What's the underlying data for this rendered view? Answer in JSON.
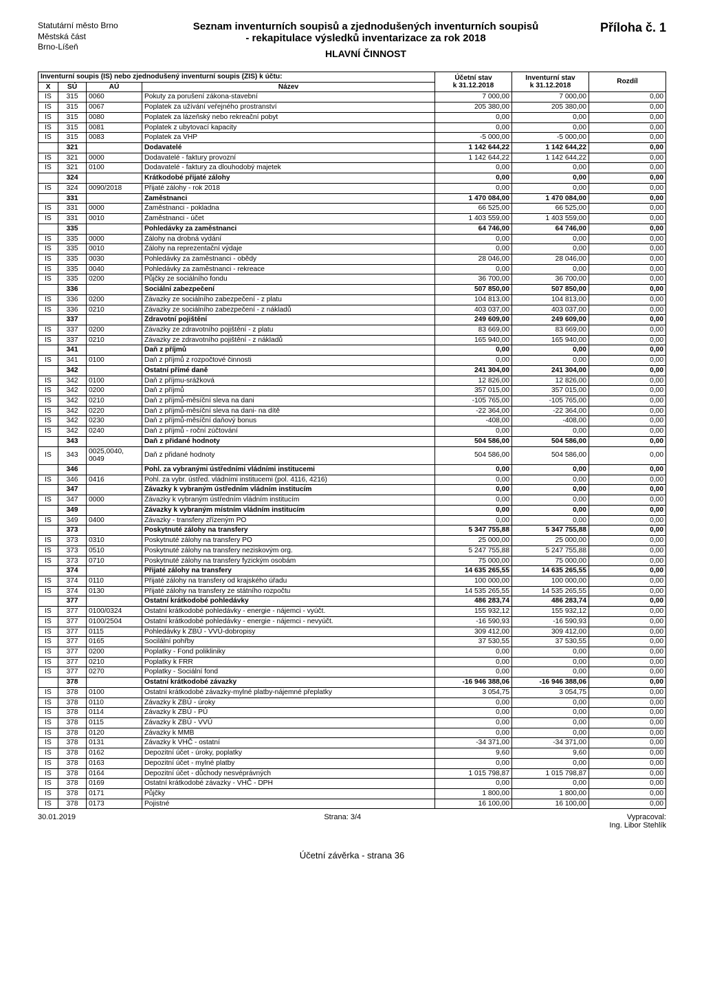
{
  "org": {
    "line1": "Statutární město Brno",
    "line2": "Městská část",
    "line3": "Brno-Líšeň"
  },
  "title": {
    "line1": "Seznam inventurních soupisů a zjednodušených inventurních soupisů",
    "line2": "- rekapitulace výsledků inventarizace za rok 2018",
    "line3": "HLAVNÍ ČINNOST"
  },
  "appendix": "Příloha č. 1",
  "header": {
    "long": "Inventurní soupis (IS) nebo zjednodušený inventurní soupis (ZIS) k účtu:",
    "x": "X",
    "su": "SÚ",
    "au": "AÚ",
    "name": "Název",
    "col_ucet_l1": "Účetní stav",
    "col_ucet_l2": "k 31.12.2018",
    "col_inv_l1": "Inventurní stav",
    "col_inv_l2": "k 31.12.2018",
    "col_diff": "Rozdíl"
  },
  "rows": [
    {
      "x": "IS",
      "su": "315",
      "au": "0060",
      "name": "Pokuty za porušení zákona-stavební",
      "v1": "7 000,00",
      "v2": "7 000,00",
      "v3": "0,00"
    },
    {
      "x": "IS",
      "su": "315",
      "au": "0067",
      "name": "Poplatek za užívání veřejného prostranství",
      "v1": "205 380,00",
      "v2": "205 380,00",
      "v3": "0,00"
    },
    {
      "x": "IS",
      "su": "315",
      "au": "0080",
      "name": "Poplatek za lázeňský nebo rekreační pobyt",
      "v1": "0,00",
      "v2": "0,00",
      "v3": "0,00"
    },
    {
      "x": "IS",
      "su": "315",
      "au": "0081",
      "name": "Poplatek z ubytovací kapacity",
      "v1": "0,00",
      "v2": "0,00",
      "v3": "0,00"
    },
    {
      "x": "IS",
      "su": "315",
      "au": "0083",
      "name": "Poplatek za VHP",
      "v1": "-5 000,00",
      "v2": "-5 000,00",
      "v3": "0,00"
    },
    {
      "bold": true,
      "x": "",
      "su": "321",
      "au": "",
      "name": "Dodavatelé",
      "v1": "1 142 644,22",
      "v2": "1 142 644,22",
      "v3": "0,00"
    },
    {
      "x": "IS",
      "su": "321",
      "au": "0000",
      "name": "Dodavatelé - faktury provozní",
      "v1": "1 142 644,22",
      "v2": "1 142 644,22",
      "v3": "0,00"
    },
    {
      "x": "IS",
      "su": "321",
      "au": "0100",
      "name": "Dodavatelé - faktury za dlouhodobý majetek",
      "v1": "0,00",
      "v2": "0,00",
      "v3": "0,00"
    },
    {
      "bold": true,
      "x": "",
      "su": "324",
      "au": "",
      "name": "Krátkodobé přijaté zálohy",
      "v1": "0,00",
      "v2": "0,00",
      "v3": "0,00"
    },
    {
      "x": "IS",
      "su": "324",
      "au": "0090/2018",
      "name": "Přijaté zálohy - rok 2018",
      "v1": "0,00",
      "v2": "0,00",
      "v3": "0,00"
    },
    {
      "bold": true,
      "x": "",
      "su": "331",
      "au": "",
      "name": "Zaměstnanci",
      "v1": "1 470 084,00",
      "v2": "1 470 084,00",
      "v3": "0,00"
    },
    {
      "x": "IS",
      "su": "331",
      "au": "0000",
      "name": "Zaměstnanci - pokladna",
      "v1": "66 525,00",
      "v2": "66 525,00",
      "v3": "0,00"
    },
    {
      "x": "IS",
      "su": "331",
      "au": "0010",
      "name": "Zaměstnanci - účet",
      "v1": "1 403 559,00",
      "v2": "1 403 559,00",
      "v3": "0,00"
    },
    {
      "bold": true,
      "x": "",
      "su": "335",
      "au": "",
      "name": "Pohledávky za zaměstnanci",
      "v1": "64 746,00",
      "v2": "64 746,00",
      "v3": "0,00"
    },
    {
      "x": "IS",
      "su": "335",
      "au": "0000",
      "name": "Zálohy na drobná vydání",
      "v1": "0,00",
      "v2": "0,00",
      "v3": "0,00"
    },
    {
      "x": "IS",
      "su": "335",
      "au": "0010",
      "name": "Zálohy na reprezentační výdaje",
      "v1": "0,00",
      "v2": "0,00",
      "v3": "0,00"
    },
    {
      "x": "IS",
      "su": "335",
      "au": "0030",
      "name": "Pohledávky za zaměstnanci - obědy",
      "v1": "28 046,00",
      "v2": "28 046,00",
      "v3": "0,00"
    },
    {
      "x": "IS",
      "su": "335",
      "au": "0040",
      "name": "Pohledávky za zaměstnanci - rekreace",
      "v1": "0,00",
      "v2": "0,00",
      "v3": "0,00"
    },
    {
      "x": "IS",
      "su": "335",
      "au": "0200",
      "name": "Půjčky ze sociálního fondu",
      "v1": "36 700,00",
      "v2": "36 700,00",
      "v3": "0,00"
    },
    {
      "bold": true,
      "x": "",
      "su": "336",
      "au": "",
      "name": "Sociální zabezpečení",
      "v1": "507 850,00",
      "v2": "507 850,00",
      "v3": "0,00"
    },
    {
      "x": "IS",
      "su": "336",
      "au": "0200",
      "name": "Závazky ze sociálního zabezpečení - z platu",
      "v1": "104 813,00",
      "v2": "104 813,00",
      "v3": "0,00"
    },
    {
      "x": "IS",
      "su": "336",
      "au": "0210",
      "name": "Závazky ze sociálního zabezpečení - z nákladů",
      "v1": "403 037,00",
      "v2": "403 037,00",
      "v3": "0,00"
    },
    {
      "bold": true,
      "x": "",
      "su": "337",
      "au": "",
      "name": "Zdravotní pojištění",
      "v1": "249 609,00",
      "v2": "249 609,00",
      "v3": "0,00"
    },
    {
      "x": "IS",
      "su": "337",
      "au": "0200",
      "name": "Závazky ze zdravotního pojištění - z platu",
      "v1": "83 669,00",
      "v2": "83 669,00",
      "v3": "0,00"
    },
    {
      "x": "IS",
      "su": "337",
      "au": "0210",
      "name": "Závazky ze zdravotního pojištění - z nákladů",
      "v1": "165 940,00",
      "v2": "165 940,00",
      "v3": "0,00"
    },
    {
      "bold": true,
      "x": "",
      "su": "341",
      "au": "",
      "name": "Daň z příjmů",
      "v1": "0,00",
      "v2": "0,00",
      "v3": "0,00"
    },
    {
      "x": "IS",
      "su": "341",
      "au": "0100",
      "name": "Daň z příjmů z rozpočtové činnosti",
      "v1": "0,00",
      "v2": "0,00",
      "v3": "0,00"
    },
    {
      "bold": true,
      "x": "",
      "su": "342",
      "au": "",
      "name": "Ostatní přímé daně",
      "v1": "241 304,00",
      "v2": "241 304,00",
      "v3": "0,00"
    },
    {
      "x": "IS",
      "su": "342",
      "au": "0100",
      "name": "Daň z příjmu-srážková",
      "v1": "12 826,00",
      "v2": "12 826,00",
      "v3": "0,00"
    },
    {
      "x": "IS",
      "su": "342",
      "au": "0200",
      "name": "Daň z příjmů",
      "v1": "357 015,00",
      "v2": "357 015,00",
      "v3": "0,00"
    },
    {
      "x": "IS",
      "su": "342",
      "au": "0210",
      "name": "Daň z příjmů-měsíční sleva na dani",
      "v1": "-105 765,00",
      "v2": "-105 765,00",
      "v3": "0,00"
    },
    {
      "x": "IS",
      "su": "342",
      "au": "0220",
      "name": "Daň z příjmů-měsíční sleva na dani- na dítě",
      "v1": "-22 364,00",
      "v2": "-22 364,00",
      "v3": "0,00"
    },
    {
      "x": "IS",
      "su": "342",
      "au": "0230",
      "name": "Daň z příjmů-měsíční daňový bonus",
      "v1": "-408,00",
      "v2": "-408,00",
      "v3": "0,00"
    },
    {
      "x": "IS",
      "su": "342",
      "au": "0240",
      "name": "Daň z příjmů - roční zúčtování",
      "v1": "0,00",
      "v2": "0,00",
      "v3": "0,00"
    },
    {
      "bold": true,
      "x": "",
      "su": "343",
      "au": "",
      "name": "Daň z přidané hodnoty",
      "v1": "504 586,00",
      "v2": "504 586,00",
      "v3": "0,00"
    },
    {
      "x": "IS",
      "su": "343",
      "au": "0025,0040, 0049",
      "name": "Daň z přidané hodnoty",
      "v1": "504 586,00",
      "v2": "504 586,00",
      "v3": "0,00"
    },
    {
      "bold": true,
      "x": "",
      "su": "346",
      "au": "",
      "name": "Pohl. za vybranými ústředními vládními institucemi",
      "v1": "0,00",
      "v2": "0,00",
      "v3": "0,00"
    },
    {
      "x": "IS",
      "su": "346",
      "au": "0416",
      "name": "Pohl. za vybr. ústřed. vládními institucemi (pol. 4116, 4216)",
      "v1": "0,00",
      "v2": "0,00",
      "v3": "0,00"
    },
    {
      "bold": true,
      "x": "",
      "su": "347",
      "au": "",
      "name": "Závazky k vybraným ústředním vládním institucím",
      "v1": "0,00",
      "v2": "0,00",
      "v3": "0,00"
    },
    {
      "x": "IS",
      "su": "347",
      "au": "0000",
      "name": "Závazky k vybraným ústředním vládním institucím",
      "v1": "0,00",
      "v2": "0,00",
      "v3": "0,00"
    },
    {
      "bold": true,
      "x": "",
      "su": "349",
      "au": "",
      "name": "Závazky k vybraným místním vládním institucím",
      "v1": "0,00",
      "v2": "0,00",
      "v3": "0,00"
    },
    {
      "x": "IS",
      "su": "349",
      "au": "0400",
      "name": "Závazky - transfery zřízeným PO",
      "v1": "0,00",
      "v2": "0,00",
      "v3": "0,00"
    },
    {
      "bold": true,
      "x": "",
      "su": "373",
      "au": "",
      "name": "Poskytnuté zálohy na transfery",
      "v1": "5 347 755,88",
      "v2": "5 347 755,88",
      "v3": "0,00"
    },
    {
      "x": "IS",
      "su": "373",
      "au": "0310",
      "name": "Poskytnuté zálohy na transfery PO",
      "v1": "25 000,00",
      "v2": "25 000,00",
      "v3": "0,00"
    },
    {
      "x": "IS",
      "su": "373",
      "au": "0510",
      "name": "Poskytnuté zálohy na transfery neziskovým org.",
      "v1": "5 247 755,88",
      "v2": "5 247 755,88",
      "v3": "0,00"
    },
    {
      "x": "IS",
      "su": "373",
      "au": "0710",
      "name": "Poskytnuté zálohy na transfery fyzickým osobám",
      "v1": "75 000,00",
      "v2": "75 000,00",
      "v3": "0,00"
    },
    {
      "bold": true,
      "x": "",
      "su": "374",
      "au": "",
      "name": "Přijaté zálohy na transfery",
      "v1": "14 635 265,55",
      "v2": "14 635 265,55",
      "v3": "0,00"
    },
    {
      "x": "IS",
      "su": "374",
      "au": "0110",
      "name": "Přijaté zálohy na transfery od krajského úřadu",
      "v1": "100 000,00",
      "v2": "100 000,00",
      "v3": "0,00"
    },
    {
      "x": "IS",
      "su": "374",
      "au": "0130",
      "name": "Přijaté zálohy na transfery ze státního rozpočtu",
      "v1": "14 535 265,55",
      "v2": "14 535 265,55",
      "v3": "0,00"
    },
    {
      "bold": true,
      "x": "",
      "su": "377",
      "au": "",
      "name": "Ostatní krátkodobé pohledávky",
      "v1": "486 283,74",
      "v2": "486 283,74",
      "v3": "0,00"
    },
    {
      "x": "IS",
      "su": "377",
      "au": "0100/0324",
      "name": "Ostatní krátkodobé pohledávky - energie - nájemci - vyúčt.",
      "v1": "155 932,12",
      "v2": "155 932,12",
      "v3": "0,00"
    },
    {
      "x": "IS",
      "su": "377",
      "au": "0100/2504",
      "name": "Ostatní krátkodobé pohledávky - energie - nájemci - nevyúčt.",
      "v1": "-16 590,93",
      "v2": "-16 590,93",
      "v3": "0,00"
    },
    {
      "x": "IS",
      "su": "377",
      "au": "0115",
      "name": "Pohledávky k ZBÚ - VVÚ-dobropisy",
      "v1": "309 412,00",
      "v2": "309 412,00",
      "v3": "0,00"
    },
    {
      "x": "IS",
      "su": "377",
      "au": "0165",
      "name": "Socilální pohřby",
      "v1": "37 530,55",
      "v2": "37 530,55",
      "v3": "0,00"
    },
    {
      "x": "IS",
      "su": "377",
      "au": "0200",
      "name": "Poplatky - Fond polikliniky",
      "v1": "0,00",
      "v2": "0,00",
      "v3": "0,00"
    },
    {
      "x": "IS",
      "su": "377",
      "au": "0210",
      "name": "Poplatky k FRR",
      "v1": "0,00",
      "v2": "0,00",
      "v3": "0,00"
    },
    {
      "x": "IS",
      "su": "377",
      "au": "0270",
      "name": "Poplatky - Sociální fond",
      "v1": "0,00",
      "v2": "0,00",
      "v3": "0,00"
    },
    {
      "bold": true,
      "x": "",
      "su": "378",
      "au": "",
      "name": "Ostatní krátkodobé závazky",
      "v1": "-16 946 388,06",
      "v2": "-16 946 388,06",
      "v3": "0,00"
    },
    {
      "x": "IS",
      "su": "378",
      "au": "0100",
      "name": "Ostatní krátkodobé závazky-mylné platby-nájemné přeplatky",
      "v1": "3 054,75",
      "v2": "3 054,75",
      "v3": "0,00"
    },
    {
      "x": "IS",
      "su": "378",
      "au": "0110",
      "name": "Závazky k ZBÚ - úroky",
      "v1": "0,00",
      "v2": "0,00",
      "v3": "0,00"
    },
    {
      "x": "IS",
      "su": "378",
      "au": "0114",
      "name": "Závazky k ZBÚ - PÚ",
      "v1": "0,00",
      "v2": "0,00",
      "v3": "0,00"
    },
    {
      "x": "IS",
      "su": "378",
      "au": "0115",
      "name": "Závazky k ZBÚ - VVÚ",
      "v1": "0,00",
      "v2": "0,00",
      "v3": "0,00"
    },
    {
      "x": "IS",
      "su": "378",
      "au": "0120",
      "name": "Závazky k MMB",
      "v1": "0,00",
      "v2": "0,00",
      "v3": "0,00"
    },
    {
      "x": "IS",
      "su": "378",
      "au": "0131",
      "name": "Závazky k VHČ - ostatní",
      "v1": "-34 371,00",
      "v2": "-34 371,00",
      "v3": "0,00"
    },
    {
      "x": "IS",
      "su": "378",
      "au": "0162",
      "name": "Depozitní účet - úroky, poplatky",
      "v1": "9,60",
      "v2": "9,60",
      "v3": "0,00"
    },
    {
      "x": "IS",
      "su": "378",
      "au": "0163",
      "name": "Depozitní účet - mylné platby",
      "v1": "0,00",
      "v2": "0,00",
      "v3": "0,00"
    },
    {
      "x": "IS",
      "su": "378",
      "au": "0164",
      "name": "Depozitní účet - důchody nesvéprávných",
      "v1": "1 015 798,87",
      "v2": "1 015 798,87",
      "v3": "0,00"
    },
    {
      "x": "IS",
      "su": "378",
      "au": "0169",
      "name": "Ostatní krátkodobé závazky - VHČ - DPH",
      "v1": "0,00",
      "v2": "0,00",
      "v3": "0,00"
    },
    {
      "x": "IS",
      "su": "378",
      "au": "0171",
      "name": "Půjčky",
      "v1": "1 800,00",
      "v2": "1 800,00",
      "v3": "0,00"
    },
    {
      "x": "IS",
      "su": "378",
      "au": "0173",
      "name": "Pojistné",
      "v1": "16 100,00",
      "v2": "16 100,00",
      "v3": "0,00"
    }
  ],
  "footer": {
    "date": "30.01.2019",
    "page": "Strana: 3/4",
    "r1": "Vypracoval:",
    "r2": "Ing. Libor Stehlík"
  },
  "closing": "Účetní závěrka - strana 36"
}
